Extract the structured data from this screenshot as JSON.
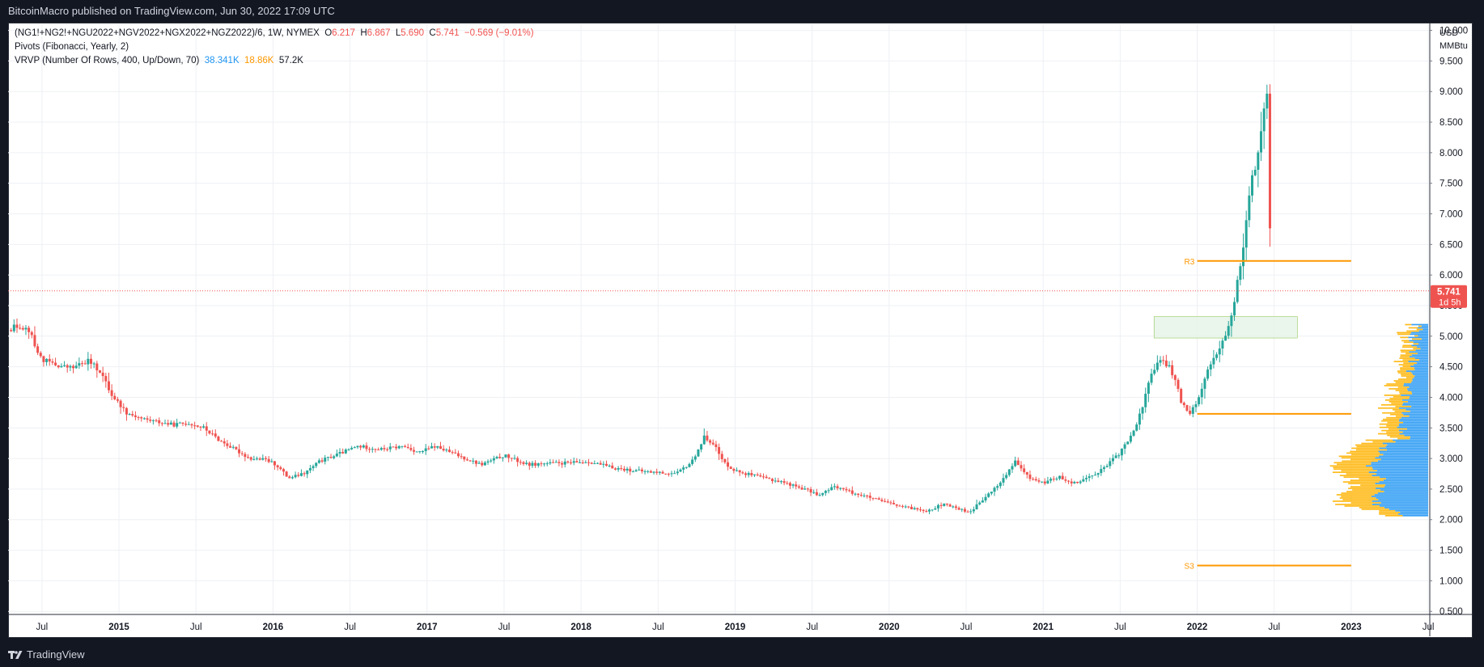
{
  "header": {
    "published": "BitcoinMacro published on TradingView.com, Jun 30, 2022 17:09 UTC"
  },
  "legend": {
    "symbol": "(NG1!+NG2!+NGU2022+NGV2022+NGX2022+NGZ2022)/6, 1W, NYMEX",
    "open_label": "O",
    "open": "6.217",
    "high_label": "H",
    "high": "6.867",
    "low_label": "L",
    "low": "5.690",
    "close_label": "C",
    "close": "5.741",
    "change": "−0.569 (−9.01%)",
    "pivots": "Pivots (Fibonacci, Yearly, 2)",
    "vrvp": "VRVP (Number Of Rows, 400, Up/Down, 70)",
    "vol_up": "38.341K",
    "vol_down": "18.86K",
    "vol_total": "57.2K"
  },
  "footer": {
    "brand": "TradingView"
  },
  "colors": {
    "up": "#26a69a",
    "down": "#ef5350",
    "pivot": "#ff9800",
    "vp_up": "#2196f3",
    "vp_down": "#ffb300",
    "grid": "#eef0f4",
    "zone_fill": "#e8f5e9",
    "zone_border": "#8bc34a"
  },
  "chart_data": {
    "type": "candlestick",
    "title": "(NG1!+NG2!+NGU2022+NGV2022+NGX2022+NGZ2022)/6, 1W, NYMEX",
    "currency": "USD",
    "unit": "MMBtu",
    "x_tick_labels": [
      "Jul",
      "2015",
      "Jul",
      "2016",
      "Jul",
      "2017",
      "Jul",
      "2018",
      "Jul",
      "2019",
      "Jul",
      "2020",
      "Jul",
      "2021",
      "Jul",
      "2022",
      "Jul",
      "2023",
      "Jul"
    ],
    "x_tick_dates": [
      2014.5,
      2015.0,
      2015.5,
      2016.0,
      2016.5,
      2017.0,
      2017.5,
      2018.0,
      2018.5,
      2019.0,
      2019.5,
      2020.0,
      2020.5,
      2021.0,
      2021.5,
      2022.0,
      2022.5,
      2023.0,
      2023.5
    ],
    "x_range": [
      2014.28,
      2023.51
    ],
    "y_ticks": [
      "10.000",
      "9.500",
      "9.000",
      "8.500",
      "8.000",
      "7.500",
      "7.000",
      "6.500",
      "6.000",
      "5.500",
      "5.000",
      "4.500",
      "4.000",
      "3.500",
      "3.000",
      "2.500",
      "2.000",
      "1.500",
      "1.000",
      "0.500"
    ],
    "ylim": [
      0.45,
      10.1
    ],
    "grid": true,
    "last_price": "5.741",
    "countdown": "1d 5h",
    "ohlc": {
      "open": 6.217,
      "high": 6.867,
      "low": 5.69,
      "close": 5.741,
      "change": -0.569,
      "change_pct": -9.01
    },
    "close_path": [
      [
        2014.28,
        5.1
      ],
      [
        2014.35,
        5.18
      ],
      [
        2014.42,
        5.1
      ],
      [
        2014.45,
        4.85
      ],
      [
        2014.5,
        4.62
      ],
      [
        2014.6,
        4.52
      ],
      [
        2014.7,
        4.48
      ],
      [
        2014.8,
        4.6
      ],
      [
        2014.88,
        4.42
      ],
      [
        2014.95,
        4.05
      ],
      [
        2015.05,
        3.75
      ],
      [
        2015.15,
        3.65
      ],
      [
        2015.25,
        3.6
      ],
      [
        2015.35,
        3.55
      ],
      [
        2015.45,
        3.58
      ],
      [
        2015.55,
        3.5
      ],
      [
        2015.65,
        3.3
      ],
      [
        2015.75,
        3.15
      ],
      [
        2015.85,
        3.0
      ],
      [
        2015.95,
        2.98
      ],
      [
        2016.02,
        2.9
      ],
      [
        2016.1,
        2.68
      ],
      [
        2016.2,
        2.75
      ],
      [
        2016.3,
        2.95
      ],
      [
        2016.45,
        3.1
      ],
      [
        2016.55,
        3.2
      ],
      [
        2016.7,
        3.15
      ],
      [
        2016.85,
        3.2
      ],
      [
        2016.95,
        3.1
      ],
      [
        2017.05,
        3.2
      ],
      [
        2017.2,
        3.05
      ],
      [
        2017.35,
        2.9
      ],
      [
        2017.5,
        3.05
      ],
      [
        2017.65,
        2.9
      ],
      [
        2017.8,
        2.92
      ],
      [
        2017.95,
        2.93
      ],
      [
        2018.05,
        2.95
      ],
      [
        2018.2,
        2.85
      ],
      [
        2018.35,
        2.8
      ],
      [
        2018.5,
        2.77
      ],
      [
        2018.62,
        2.75
      ],
      [
        2018.72,
        2.95
      ],
      [
        2018.8,
        3.35
      ],
      [
        2018.86,
        3.25
      ],
      [
        2018.92,
        2.95
      ],
      [
        2019.0,
        2.8
      ],
      [
        2019.15,
        2.7
      ],
      [
        2019.3,
        2.62
      ],
      [
        2019.45,
        2.5
      ],
      [
        2019.55,
        2.4
      ],
      [
        2019.65,
        2.55
      ],
      [
        2019.75,
        2.45
      ],
      [
        2019.85,
        2.38
      ],
      [
        2019.95,
        2.3
      ],
      [
        2020.1,
        2.2
      ],
      [
        2020.25,
        2.15
      ],
      [
        2020.35,
        2.25
      ],
      [
        2020.45,
        2.18
      ],
      [
        2020.52,
        2.12
      ],
      [
        2020.62,
        2.35
      ],
      [
        2020.72,
        2.6
      ],
      [
        2020.82,
        2.95
      ],
      [
        2020.9,
        2.7
      ],
      [
        2021.0,
        2.6
      ],
      [
        2021.1,
        2.7
      ],
      [
        2021.2,
        2.6
      ],
      [
        2021.3,
        2.7
      ],
      [
        2021.4,
        2.85
      ],
      [
        2021.5,
        3.1
      ],
      [
        2021.58,
        3.4
      ],
      [
        2021.64,
        3.8
      ],
      [
        2021.7,
        4.4
      ],
      [
        2021.76,
        4.6
      ],
      [
        2021.82,
        4.5
      ],
      [
        2021.86,
        4.25
      ],
      [
        2021.9,
        3.9
      ],
      [
        2021.95,
        3.75
      ],
      [
        2022.0,
        3.95
      ],
      [
        2022.05,
        4.3
      ],
      [
        2022.1,
        4.65
      ],
      [
        2022.15,
        4.8
      ],
      [
        2022.2,
        5.1
      ],
      [
        2022.25,
        5.7
      ],
      [
        2022.3,
        6.5
      ],
      [
        2022.34,
        7.4
      ],
      [
        2022.38,
        7.8
      ],
      [
        2022.42,
        8.4
      ],
      [
        2022.44,
        8.8
      ],
      [
        2022.455,
        8.9
      ],
      [
        2022.47,
        6.9
      ],
      [
        2022.48,
        6.2
      ],
      [
        2022.49,
        5.741
      ]
    ],
    "pivot_lines": [
      {
        "label": "R3",
        "value": 6.23,
        "from": 2022.0,
        "to": 2023.0,
        "labeled": true
      },
      {
        "label": "",
        "value": 3.73,
        "from": 2022.0,
        "to": 2023.0,
        "labeled": false
      },
      {
        "label": "S3",
        "value": 1.25,
        "from": 2022.0,
        "to": 2023.0,
        "labeled": true
      }
    ],
    "rect_zone": {
      "x0": 2021.72,
      "x1": 2022.65,
      "y0": 4.97,
      "y1": 5.32
    },
    "volume_profile": {
      "price_min": 2.05,
      "price_max": 5.2,
      "rows": 120,
      "series": [
        {
          "name": "Up"
        },
        {
          "name": "Down"
        }
      ]
    }
  }
}
